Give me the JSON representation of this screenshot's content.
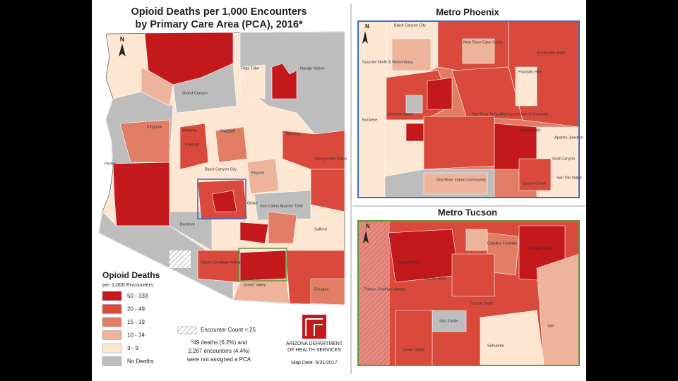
{
  "title": [
    "Opioid Deaths per 1,000 Encounters",
    "by Primary Care Area (PCA), 2016*"
  ],
  "north_label": "N",
  "legend": {
    "title": "Opioid Deaths",
    "subtitle": "per 1,000 Encounters",
    "items": [
      {
        "label": "50 - 333",
        "color": "#c3181c"
      },
      {
        "label": "20 - 49",
        "color": "#d94a3c"
      },
      {
        "label": "15 - 19",
        "color": "#e17d64"
      },
      {
        "label": "10 - 14",
        "color": "#eeb39b"
      },
      {
        "label": "3 - 9",
        "color": "#fde6d2"
      },
      {
        "label": "No Deaths",
        "color": "#bdbdbd"
      }
    ]
  },
  "hatch_label": "Encounter Count < 25",
  "note": [
    "*49 deaths (6.2%) and",
    "2,267 encounters (4.4%)",
    "were not assigned a PCA"
  ],
  "agency": [
    "ARIZONA DEPARTMENT",
    "OF HEALTH SERVICES"
  ],
  "map_date": "Map Date: 5/31/2017",
  "region_labels": [
    "Kingman",
    "Grand Canyon",
    "Hopi Tribe",
    "Navajo Nation",
    "Flagstaff",
    "Williams",
    "Prescott",
    "Winslow",
    "Black Canyon City",
    "Payson",
    "Springerville Eagar",
    "San Carlos Apache Tribe",
    "Globe",
    "Parker",
    "Buckeye",
    "Safford",
    "Tohono O'odham Nation",
    "Green Valley",
    "Douglas"
  ],
  "insets": [
    {
      "title": "Metro Phoenix",
      "labels": [
        "Black Canyon City",
        "New River Cave Creek",
        "Surprise North & Wickenburg",
        "Scottsdale North",
        "Fountain Hills",
        "Glendale West",
        "Salt River Pima-Maricopa Indian Community",
        "Mesa North",
        "Apache Junction",
        "Buckeye",
        "Gold Canyon",
        "Gila River Indian Community",
        "San Tan Valley",
        "Queen Creek"
      ]
    },
    {
      "title": "Metro Tucson",
      "labels": [
        "Picture Rocks",
        "Catalina Foothills",
        "Tanque Verde",
        "Tucson West",
        "Tucson South",
        "Tohono O'odham Nation",
        "San Xavier",
        "Vail",
        "Green Valley",
        "Sahuarita"
      ]
    }
  ]
}
